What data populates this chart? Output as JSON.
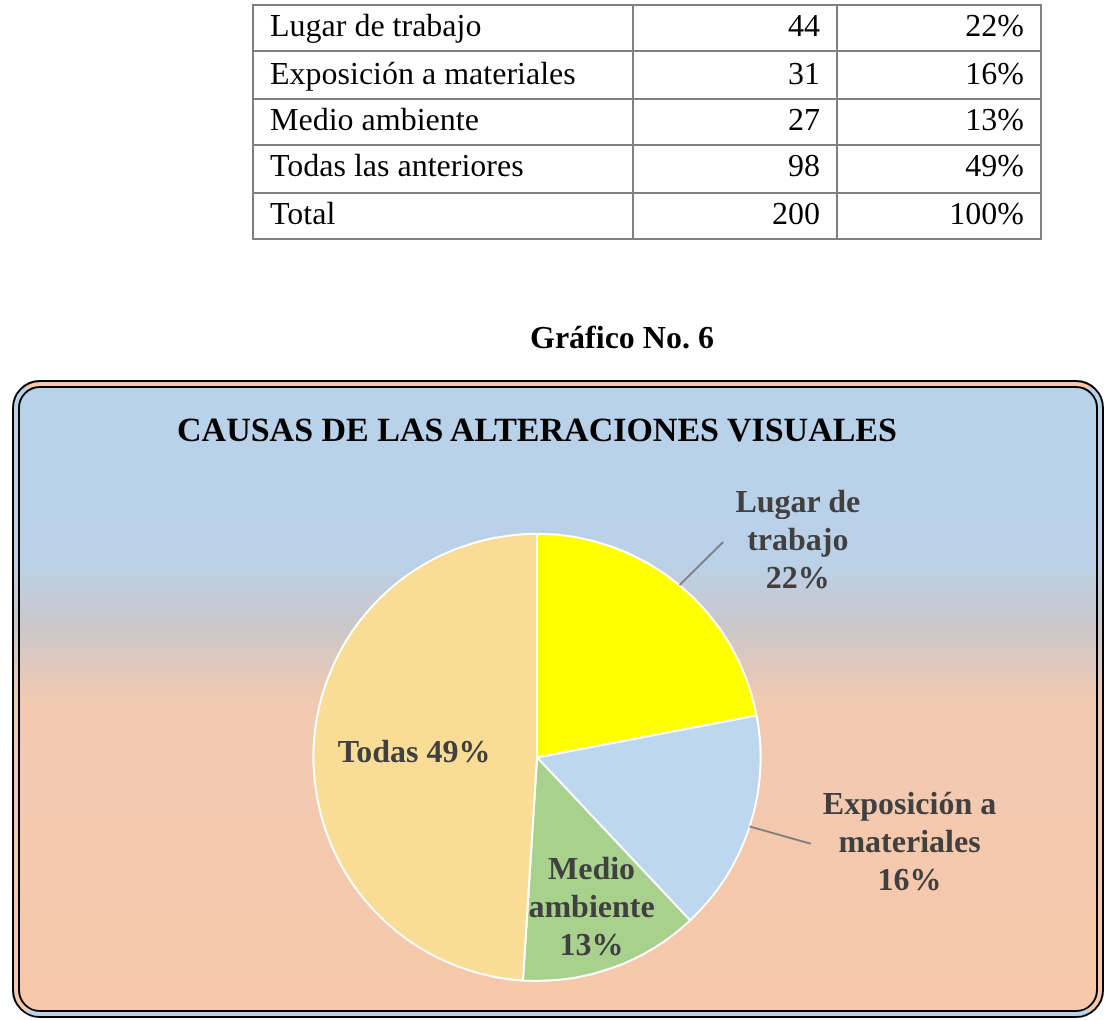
{
  "chart_data": [
    {
      "type": "other",
      "categories": [
        "Lugar de trabajo",
        "Exposición a materiales",
        "Medio ambiente",
        "Todas las anteriores",
        "Total"
      ],
      "series": [
        {
          "values": [
            44,
            31,
            27,
            98,
            200
          ]
        },
        {
          "values": [
            22,
            16,
            13,
            49,
            100
          ],
          "value_labels": [
            "22%",
            "16%",
            "13%",
            "49%",
            "100%"
          ]
        }
      ],
      "data_labels": true
    },
    {
      "type": "pie",
      "title": "CAUSAS DE LAS ALTERACIONES VISUALES",
      "annotations": [
        "Gráfico No. 6"
      ],
      "categories": [
        "Lugar de trabajo",
        "Exposición a materiales",
        "Medio ambiente",
        "Todas"
      ],
      "values": [
        22,
        16,
        13,
        49
      ],
      "value_labels": [
        "22%",
        "16%",
        "13%",
        "49%"
      ],
      "colors": [
        "#ffff00",
        "#bdd7ee",
        "#a9d18e",
        "#f9dd97"
      ]
    }
  ]
}
